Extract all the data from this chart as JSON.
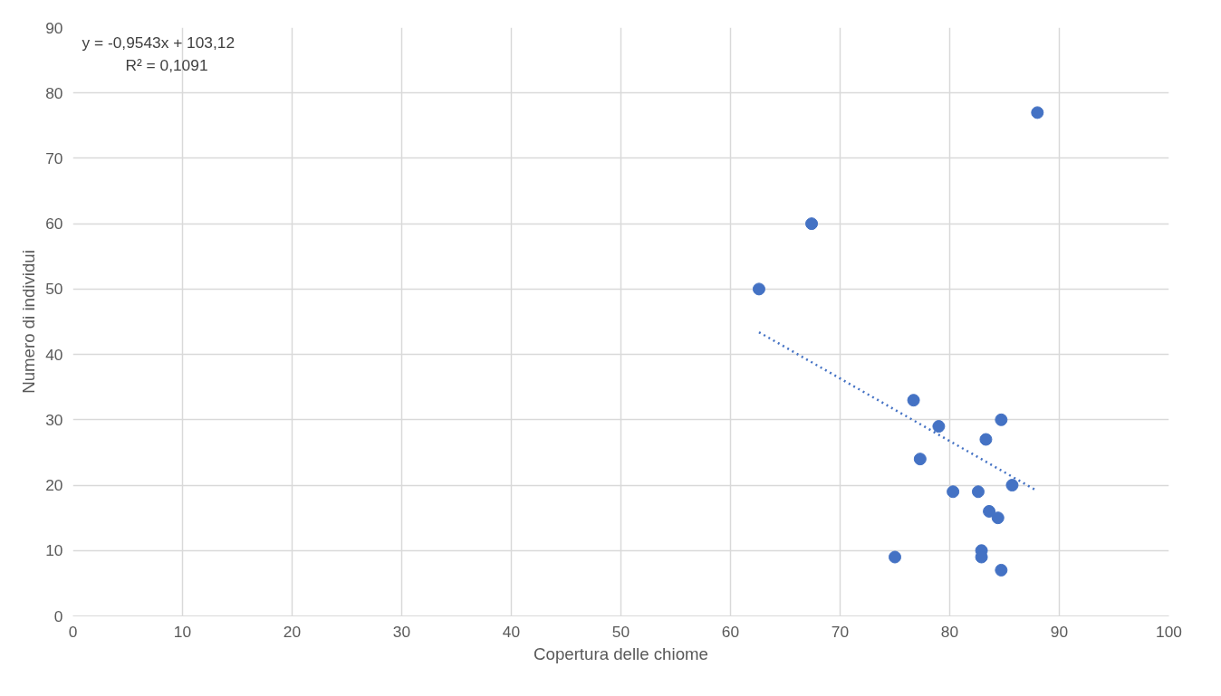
{
  "chart_data": {
    "type": "scatter",
    "xlabel": "Copertura delle chiome",
    "ylabel": "Numero di individui",
    "xlim": [
      0,
      100
    ],
    "xticks": [
      0,
      10,
      20,
      30,
      40,
      50,
      60,
      70,
      80,
      90,
      100
    ],
    "ylim": [
      0,
      90
    ],
    "yticks": [
      0,
      10,
      20,
      30,
      40,
      50,
      60,
      70,
      80,
      90
    ],
    "grid": true,
    "marker": "circle",
    "annotations": [
      "y = -0,9543x + 103,12",
      "R² = 0,1091"
    ],
    "series": [
      {
        "color": "#4472c4",
        "x": [
          62.6,
          67.4,
          88.0,
          76.7,
          79.0,
          77.3,
          84.7,
          83.3,
          80.3,
          82.6,
          85.7,
          83.6,
          84.4,
          82.9,
          82.9,
          84.7,
          75.0
        ],
        "values": [
          50,
          60,
          77,
          33,
          29,
          24,
          30,
          27,
          19,
          19,
          20,
          16,
          15,
          10,
          9,
          7,
          9
        ]
      },
      {
        "type": "line",
        "color": "#4472c4",
        "line_style": "dotted",
        "marker": "none",
        "x": [
          62.6,
          88.0
        ],
        "values": [
          43.4,
          19.1
        ]
      }
    ]
  }
}
